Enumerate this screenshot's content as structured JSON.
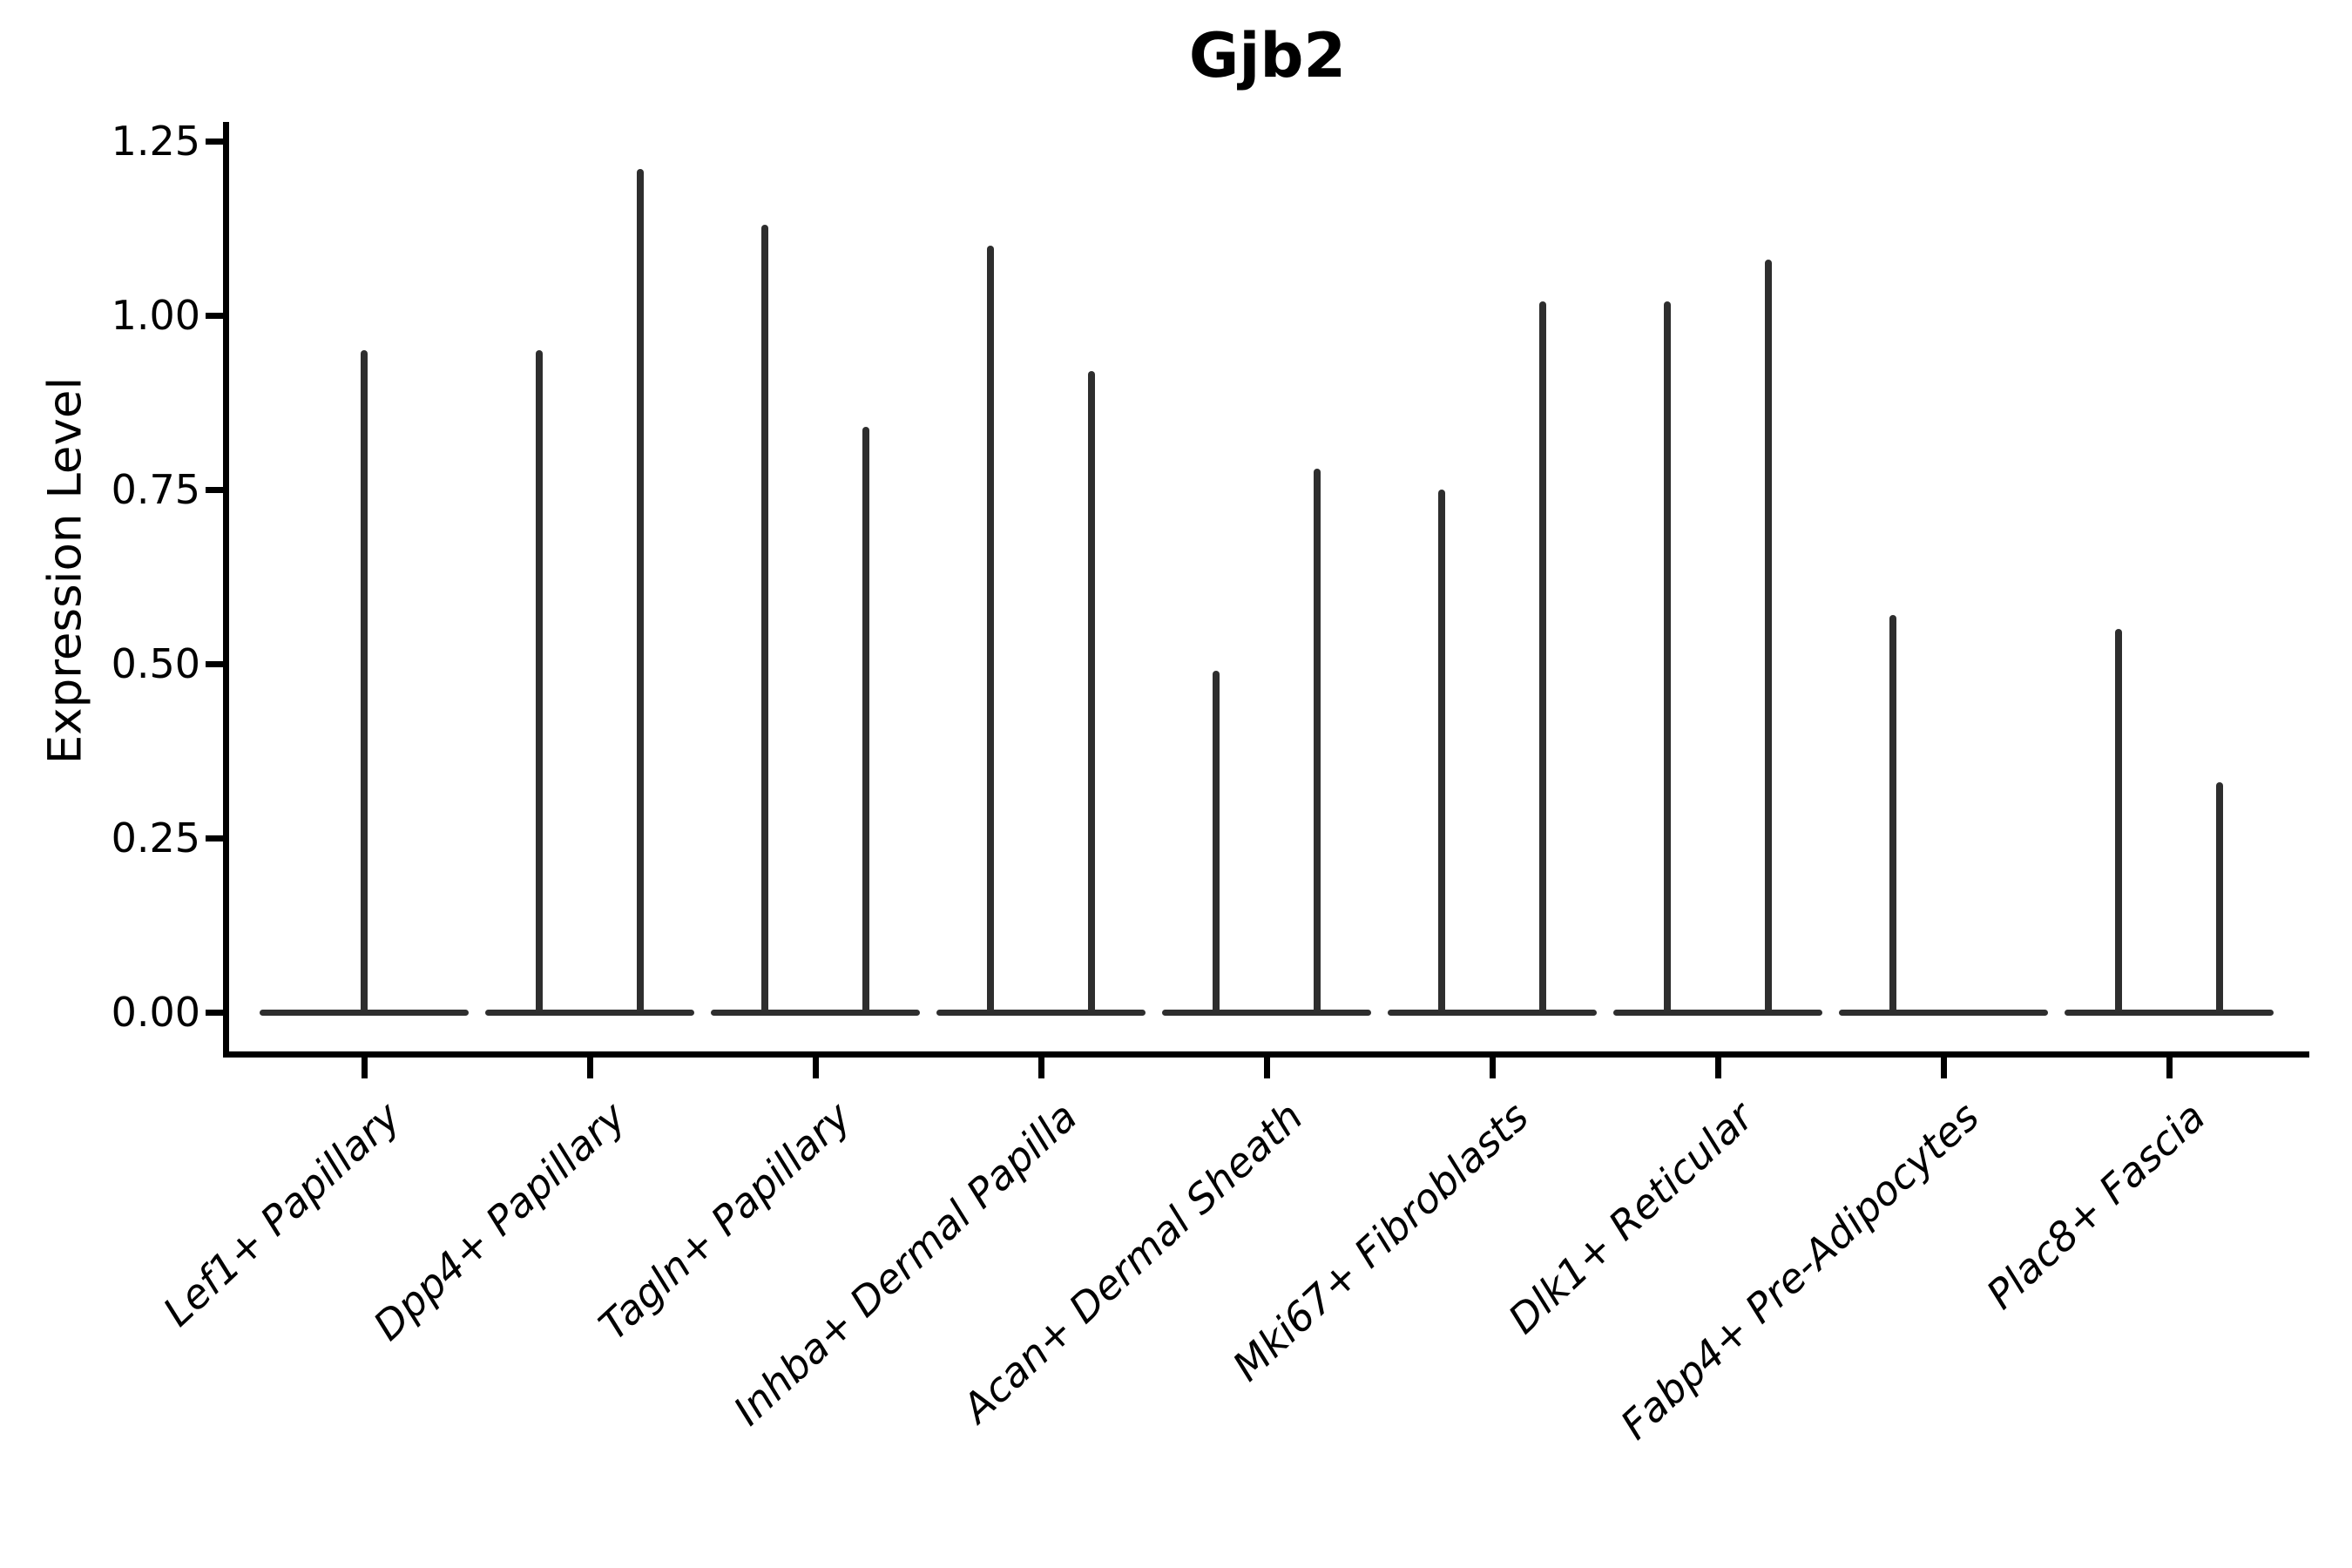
{
  "chart_data": {
    "type": "violin",
    "title": "Gjb2",
    "xlabel": "",
    "ylabel": "Expression Level",
    "ylim": [
      -0.06,
      1.31
    ],
    "yticks": [
      "0.00",
      "0.25",
      "0.50",
      "0.75",
      "1.00",
      "1.25"
    ],
    "ytick_values": [
      0.0,
      0.25,
      0.5,
      0.75,
      1.0,
      1.25
    ],
    "grid": false,
    "legend": null,
    "x_tick_rotation_deg": 43,
    "style_note": "Single-cell expression violin plot; violins collapse to a flat baseline at 0 with a thin vertical tail (spike) reaching the maximum expression value. Most categories show two adjacent violins (left/right), some only one.",
    "categories": [
      "Lef1+ Papillary",
      "Dpp4+ Papillary",
      "Tagln+ Papillary",
      "Inhba+ Dermal Papilla",
      "Acan+ Dermal Sheath",
      "Mki67+ Fibroblasts",
      "Dlk1+ Reticular",
      "Fabp4+ Pre-Adipocytes",
      "Plac8+ Fascia"
    ],
    "violins": [
      {
        "category": "Lef1+ Papillary",
        "spikes": [
          {
            "position": "center",
            "max": 0.95
          }
        ]
      },
      {
        "category": "Dpp4+ Papillary",
        "spikes": [
          {
            "position": "left",
            "max": 0.95
          },
          {
            "position": "right",
            "max": 1.21
          }
        ]
      },
      {
        "category": "Tagln+ Papillary",
        "spikes": [
          {
            "position": "left",
            "max": 1.13
          },
          {
            "position": "right",
            "max": 0.84
          }
        ]
      },
      {
        "category": "Inhba+ Dermal Papilla",
        "spikes": [
          {
            "position": "left",
            "max": 1.1
          },
          {
            "position": "right",
            "max": 0.92
          }
        ]
      },
      {
        "category": "Acan+ Dermal Sheath",
        "spikes": [
          {
            "position": "left",
            "max": 0.49
          },
          {
            "position": "right",
            "max": 0.78
          }
        ]
      },
      {
        "category": "Mki67+ Fibroblasts",
        "spikes": [
          {
            "position": "left",
            "max": 0.75
          },
          {
            "position": "right",
            "max": 1.02
          }
        ]
      },
      {
        "category": "Dlk1+ Reticular",
        "spikes": [
          {
            "position": "left",
            "max": 1.02
          },
          {
            "position": "right",
            "max": 1.08
          }
        ]
      },
      {
        "category": "Fabp4+ Pre-Adipocytes",
        "spikes": [
          {
            "position": "left",
            "max": 0.57
          }
        ]
      },
      {
        "category": "Plac8+ Fascia",
        "spikes": [
          {
            "position": "left",
            "max": 0.55
          },
          {
            "position": "right",
            "max": 0.33
          }
        ]
      }
    ],
    "colors": {
      "violin": "#2e2e2e",
      "axis": "#000000",
      "text": "#000000",
      "background": "#ffffff"
    }
  }
}
